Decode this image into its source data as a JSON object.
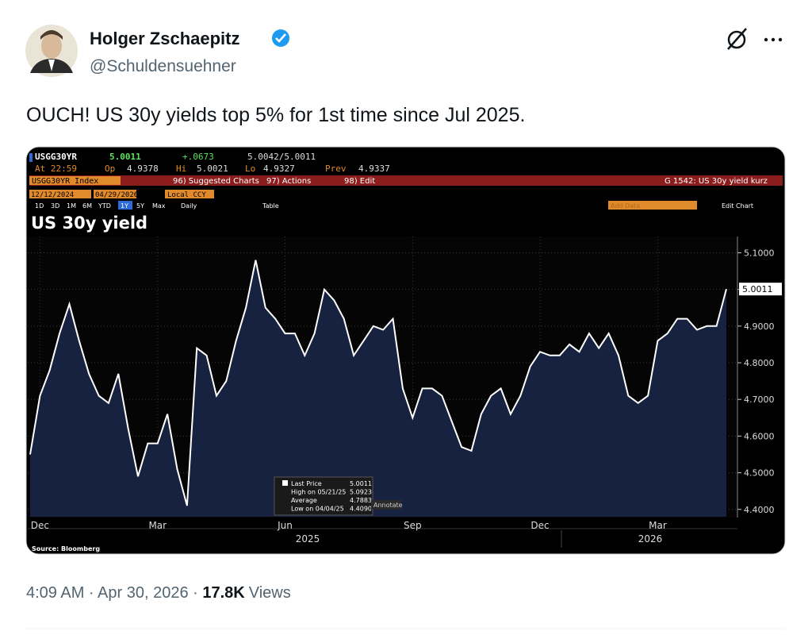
{
  "author": {
    "name": "Holger Zschaepitz",
    "handle": "@Schuldensuehner"
  },
  "text": "OUCH! US 30y yields top 5% for 1st time since Jul 2025.",
  "terminal": {
    "ticker": "USGG30YR",
    "last": "5.0011",
    "change": "+.0673",
    "bid_ask": "5.0042/5.0011",
    "time": "At 22:59",
    "open_label": "Op",
    "open": "4.9378",
    "high_label": "Hi",
    "high": "5.0021",
    "low_label": "Lo",
    "low": "4.9327",
    "prev_label": "Prev",
    "prev": "4.9337",
    "security": "USGG30YR Index",
    "menu": [
      "96) Suggested Charts",
      "97) Actions",
      "98) Edit"
    ],
    "chart_name": "G 1542: US 30y yield kurz",
    "start_date": "12/12/2024",
    "end_date": "04/29/2026",
    "currency": "Local CCY",
    "periods": [
      "1D",
      "3D",
      "1M",
      "6M",
      "YTD",
      "1Y",
      "5Y",
      "Max"
    ],
    "frequency": "Daily",
    "table": "Table",
    "add_data": "Add Data",
    "edit_chart": "Edit Chart"
  },
  "chart_data": {
    "type": "line",
    "title": "US 30y yield",
    "categories": [
      null,
      "Dec",
      null,
      null,
      null,
      null,
      null,
      null,
      null,
      null,
      null,
      null,
      null,
      "Mar",
      null,
      null,
      null,
      null,
      null,
      null,
      null,
      null,
      null,
      null,
      null,
      null,
      "Jun",
      null,
      null,
      null,
      null,
      null,
      null,
      null,
      null,
      null,
      null,
      null,
      null,
      "Sep",
      null,
      null,
      null,
      null,
      null,
      null,
      null,
      null,
      null,
      null,
      null,
      null,
      "Dec",
      null,
      null,
      null,
      null,
      null,
      null,
      null,
      null,
      null,
      null,
      null,
      "Mar",
      null,
      null,
      null,
      null,
      null,
      null,
      null
    ],
    "values": [
      4.55,
      4.71,
      4.78,
      4.88,
      4.96,
      4.86,
      4.77,
      4.71,
      4.69,
      4.77,
      4.62,
      4.49,
      4.58,
      4.58,
      4.66,
      4.51,
      4.41,
      4.84,
      4.82,
      4.71,
      4.75,
      4.86,
      4.95,
      5.08,
      4.95,
      4.92,
      4.88,
      4.88,
      4.82,
      4.88,
      5.0,
      4.97,
      4.92,
      4.82,
      4.86,
      4.9,
      4.89,
      4.92,
      4.73,
      4.65,
      4.73,
      4.73,
      4.71,
      4.64,
      4.57,
      4.56,
      4.66,
      4.71,
      4.73,
      4.66,
      4.71,
      4.79,
      4.83,
      4.82,
      4.82,
      4.85,
      4.83,
      4.88,
      4.84,
      4.88,
      4.82,
      4.71,
      4.69,
      4.71,
      4.86,
      4.88,
      4.92,
      4.92,
      4.89,
      4.9,
      4.9,
      5.0011
    ],
    "color": "#ffffff",
    "fill_color": "#16223f",
    "ylim": [
      4.38,
      5.14
    ],
    "yticks": [
      {
        "value": 4.4,
        "label": "4.4000"
      },
      {
        "value": 4.5,
        "label": "4.5000"
      },
      {
        "value": 4.6,
        "label": "4.6000"
      },
      {
        "value": 4.7,
        "label": "4.7000"
      },
      {
        "value": 4.8,
        "label": "4.8000"
      },
      {
        "value": 4.9,
        "label": "4.9000"
      },
      {
        "value": 5.0,
        "label": "5.0000"
      },
      {
        "value": 5.1,
        "label": "5.1000"
      }
    ],
    "grid": true,
    "year_labels": [
      "2025",
      "2026"
    ],
    "legend": {
      "last_label": "Last Price",
      "high_label": "High on 05/21/25",
      "high": "5.0923",
      "average_label": "Average",
      "average": "4.7883",
      "low_label": "Low on 04/04/25",
      "low": "4.4090",
      "annotate": "Annotate"
    },
    "source": "Source: Bloomberg"
  },
  "footer": {
    "time": "4:09 AM · Apr 30, 2026 · ",
    "views_count": "17.8K",
    "views_label": "Views"
  }
}
